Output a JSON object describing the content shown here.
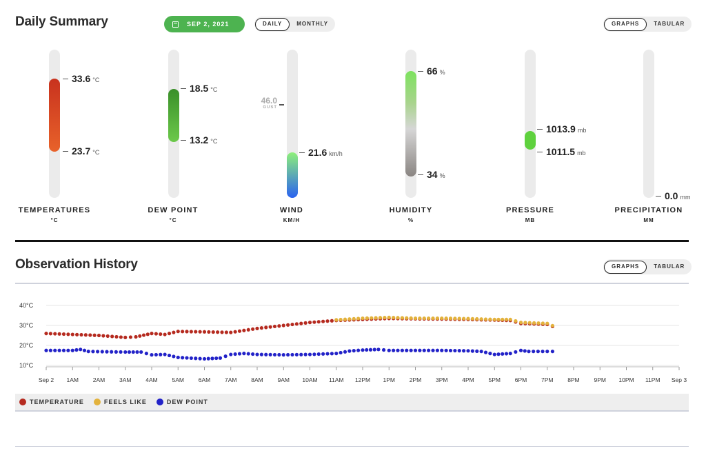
{
  "daily": {
    "title": "Daily Summary",
    "date": "SEP 2, 2021",
    "toggle_daily": "DAILY",
    "toggle_monthly": "MONTHLY",
    "view_graphs": "GRAPHS",
    "view_tabular": "TABULAR"
  },
  "gauges": {
    "temperature": {
      "label": "TEMPERATURES",
      "unit_label": "°C",
      "high": "33.6",
      "low": "23.7",
      "unit": "°C",
      "color_top": "#c8321e",
      "color_bottom": "#e8622a"
    },
    "dew_point": {
      "label": "DEW POINT",
      "unit_label": "°C",
      "high": "18.5",
      "low": "13.2",
      "unit": "°C",
      "color_top": "#3a8f2a",
      "color_bottom": "#6cc94a"
    },
    "wind": {
      "label": "WIND",
      "unit_label": "KM/H",
      "gust": "46.0",
      "gust_label": "GUST",
      "value": "21.6",
      "unit": "km/h",
      "color_top": "#8ef07a",
      "color_bottom": "#2a62f0"
    },
    "humidity": {
      "label": "HUMIDITY",
      "unit_label": "%",
      "high": "66",
      "low": "34",
      "unit": "%",
      "color_top": "#7de25e",
      "color_bottom": "#8a8582"
    },
    "pressure": {
      "label": "PRESSURE",
      "unit_label": "MB",
      "high": "1013.9",
      "low": "1011.5",
      "unit": "mb",
      "color": "#5fd13e"
    },
    "precipitation": {
      "label": "PRECIPITATION",
      "unit_label": "MM",
      "value": "0.0",
      "unit": "mm"
    }
  },
  "history": {
    "title": "Observation History",
    "view_graphs": "GRAPHS",
    "view_tabular": "TABULAR",
    "legend": [
      {
        "label": "TEMPERATURE",
        "color": "#b52a1f"
      },
      {
        "label": "FEELS LIKE",
        "color": "#e3b23c"
      },
      {
        "label": "DEW POINT",
        "color": "#2222c8"
      }
    ]
  },
  "chart_data": {
    "type": "scatter",
    "y_ticks": [
      "40°C",
      "30°C",
      "20°C",
      "10°C"
    ],
    "y_tick_values": [
      40,
      30,
      20,
      10
    ],
    "ylim": [
      10,
      40
    ],
    "x_ticks": [
      "Sep 2",
      "1AM",
      "2AM",
      "3AM",
      "4AM",
      "5AM",
      "6AM",
      "7AM",
      "8AM",
      "9AM",
      "10AM",
      "11AM",
      "12PM",
      "1PM",
      "2PM",
      "3PM",
      "4PM",
      "5PM",
      "6PM",
      "7PM",
      "8PM",
      "9PM",
      "10PM",
      "11PM",
      "Sep 3"
    ],
    "xlim": [
      0,
      24
    ],
    "series": [
      {
        "name": "TEMPERATURE",
        "color": "#b52a1f",
        "points": [
          [
            0,
            26.0
          ],
          [
            1,
            25.5
          ],
          [
            2,
            25.0
          ],
          [
            3,
            24.0
          ],
          [
            3.4,
            24.3
          ],
          [
            4,
            26.0
          ],
          [
            4.5,
            25.5
          ],
          [
            5,
            27.0
          ],
          [
            6,
            26.8
          ],
          [
            7,
            26.5
          ],
          [
            8,
            28.5
          ],
          [
            9,
            30.0
          ],
          [
            10,
            31.5
          ],
          [
            11,
            32.5
          ],
          [
            12,
            33.0
          ],
          [
            13,
            33.5
          ],
          [
            14,
            33.3
          ],
          [
            15,
            33.2
          ],
          [
            16,
            33.0
          ],
          [
            17,
            32.7
          ],
          [
            17.6,
            32.5
          ],
          [
            18,
            31.0
          ],
          [
            19,
            30.5
          ],
          [
            19.2,
            29.5
          ]
        ]
      },
      {
        "name": "FEELS LIKE",
        "color": "#e3b23c",
        "points": [
          [
            11,
            32.8
          ],
          [
            12,
            33.6
          ],
          [
            13,
            34.0
          ],
          [
            14,
            33.6
          ],
          [
            15,
            33.6
          ],
          [
            16,
            33.4
          ],
          [
            17,
            33.0
          ],
          [
            17.6,
            33.0
          ],
          [
            18,
            31.5
          ],
          [
            19,
            31.0
          ],
          [
            19.2,
            29.9
          ]
        ]
      },
      {
        "name": "DEW POINT",
        "color": "#2222c8",
        "points": [
          [
            0,
            17.5
          ],
          [
            1,
            17.5
          ],
          [
            1.3,
            18.0
          ],
          [
            1.6,
            17.0
          ],
          [
            3,
            16.7
          ],
          [
            3.6,
            16.7
          ],
          [
            4,
            15.3
          ],
          [
            4.5,
            15.5
          ],
          [
            5,
            14.0
          ],
          [
            6,
            13.3
          ],
          [
            6.6,
            13.7
          ],
          [
            7,
            15.5
          ],
          [
            7.5,
            16.0
          ],
          [
            8,
            15.5
          ],
          [
            9,
            15.3
          ],
          [
            10,
            15.5
          ],
          [
            11,
            16.0
          ],
          [
            11.5,
            17.2
          ],
          [
            12,
            17.7
          ],
          [
            12.6,
            18.0
          ],
          [
            13,
            17.5
          ],
          [
            14,
            17.5
          ],
          [
            15,
            17.5
          ],
          [
            16,
            17.3
          ],
          [
            16.5,
            17.0
          ],
          [
            17,
            15.5
          ],
          [
            17.6,
            16.0
          ],
          [
            18,
            17.5
          ],
          [
            18.3,
            17.0
          ],
          [
            19,
            17.0
          ],
          [
            19.2,
            17.0
          ]
        ]
      }
    ]
  }
}
